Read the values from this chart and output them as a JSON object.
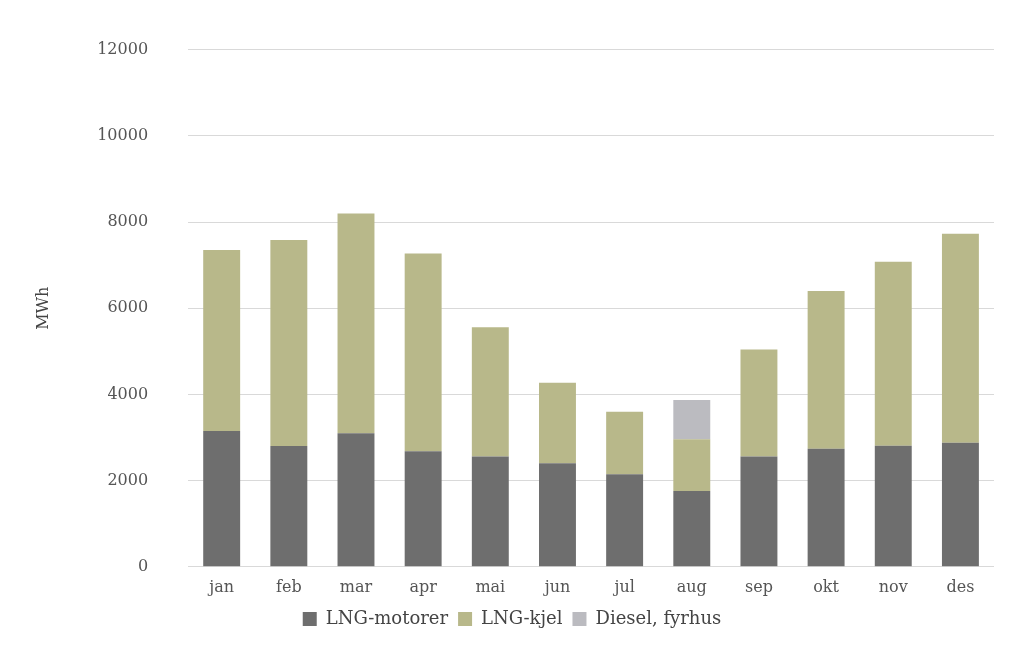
{
  "chart_data": {
    "type": "bar",
    "stacked": true,
    "ylabel": "MWh",
    "categories": [
      "jan",
      "feb",
      "mar",
      "apr",
      "mai",
      "jun",
      "jul",
      "aug",
      "sep",
      "okt",
      "nov",
      "des"
    ],
    "series": [
      {
        "name": "LNG-motorer",
        "color": "#6e6e6e",
        "values": [
          3150,
          2800,
          3100,
          2680,
          2560,
          2400,
          2150,
          1760,
          2560,
          2740,
          2810,
          2880
        ]
      },
      {
        "name": "LNG-kjel",
        "color": "#b8b88a",
        "values": [
          4200,
          4780,
          5100,
          4590,
          3000,
          1870,
          1450,
          1200,
          2480,
          3660,
          4270,
          4850
        ]
      },
      {
        "name": "Diesel, fyrhus",
        "color": "#bbbbc0",
        "values": [
          0,
          0,
          0,
          0,
          0,
          0,
          0,
          910,
          0,
          0,
          0,
          0
        ]
      }
    ],
    "ylim": [
      0,
      12000
    ],
    "yticks": [
      0,
      2000,
      4000,
      6000,
      8000,
      10000,
      12000
    ],
    "grid": "y",
    "legend": "bottom"
  }
}
